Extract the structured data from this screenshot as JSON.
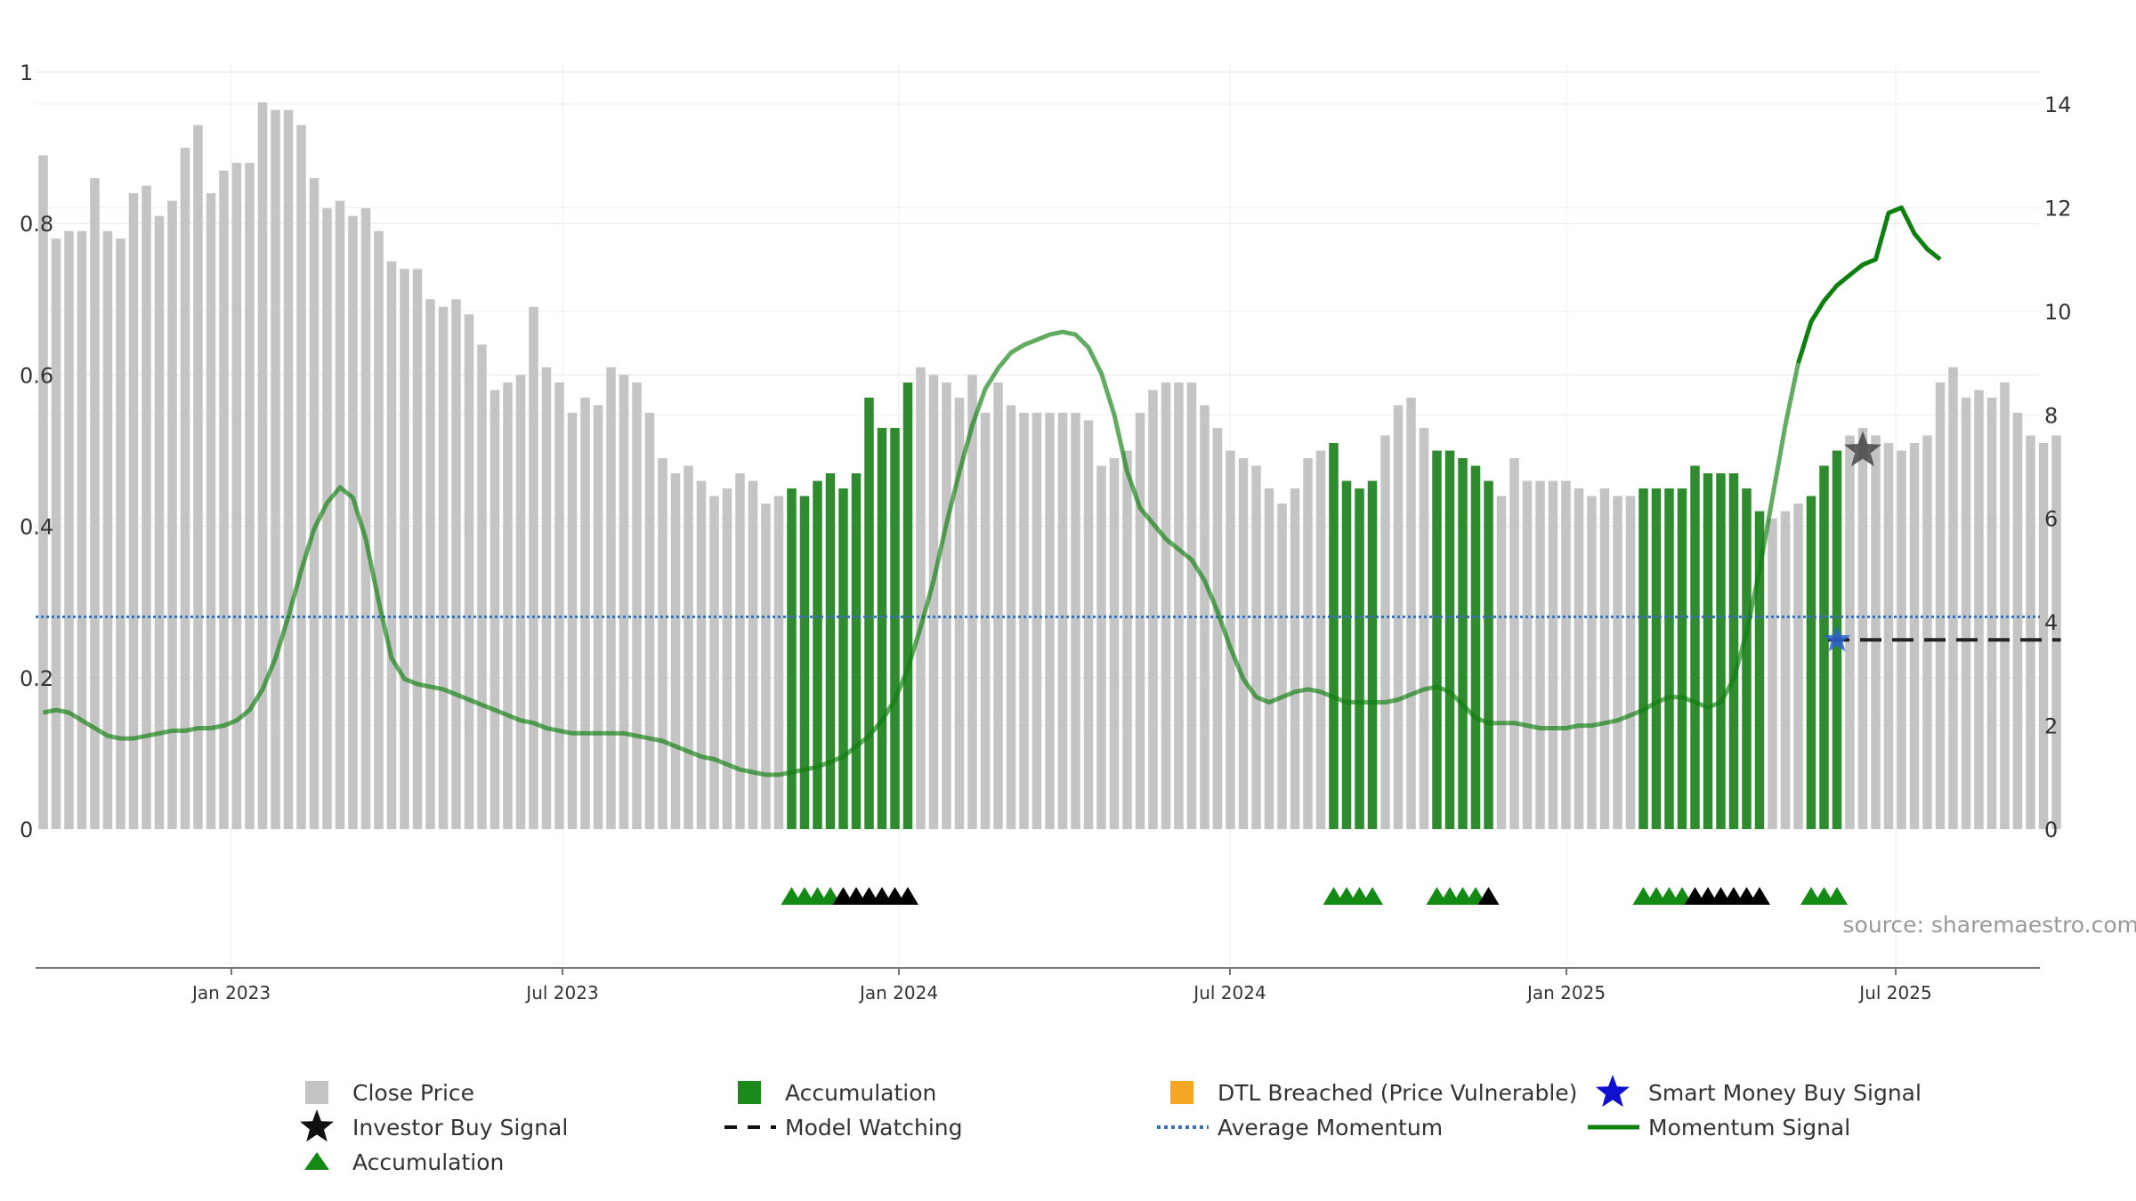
{
  "source_text": "source: sharemaestro.com",
  "legend": {
    "close_price": "Close Price",
    "accumulation_bar": "Accumulation",
    "dtl_breached": "DTL Breached (Price Vulnerable)",
    "smart_money": "Smart Money Buy Signal",
    "investor_buy": "Investor Buy Signal",
    "model_watching": "Model Watching",
    "average_momentum": "Average Momentum",
    "momentum_signal": "Momentum Signal",
    "accumulation_marker": "Accumulation"
  },
  "colors": {
    "close_price": "#c4c4c4",
    "accumulation": "#2e8b2e",
    "dtl": "#f5a623",
    "smart_money": "#1010d0",
    "investor_buy": "#111111",
    "average_momentum": "#3b6fb0",
    "momentum_signal": "#0e800e",
    "grid": "#e6e6e6",
    "source": "#999999"
  },
  "chart_data": {
    "type": "bar",
    "axes": {
      "left": {
        "ylim": [
          0,
          1
        ],
        "ticks": [
          "0",
          "0.2",
          "0.4",
          "0.6",
          "0.8",
          "1"
        ]
      },
      "right": {
        "ylim": [
          0,
          14
        ],
        "ticks": [
          "0",
          "2",
          "4",
          "6",
          "8",
          "10",
          "12",
          "14"
        ]
      },
      "x": {
        "ticks": [
          "Jan 2023",
          "Jul 2023",
          "Jan 2024",
          "Jul 2024",
          "Jan 2025",
          "Jul 2025"
        ]
      }
    },
    "grid": true,
    "legend_position": "bottom",
    "close_price": [
      0.89,
      0.78,
      0.79,
      0.79,
      0.86,
      0.79,
      0.78,
      0.84,
      0.85,
      0.81,
      0.83,
      0.9,
      0.93,
      0.84,
      0.87,
      0.88,
      0.88,
      0.96,
      0.95,
      0.95,
      0.93,
      0.86,
      0.82,
      0.83,
      0.81,
      0.82,
      0.79,
      0.75,
      0.74,
      0.74,
      0.7,
      0.69,
      0.7,
      0.68,
      0.64,
      0.58,
      0.59,
      0.6,
      0.69,
      0.61,
      0.59,
      0.55,
      0.57,
      0.56,
      0.61,
      0.6,
      0.59,
      0.55,
      0.49,
      0.47,
      0.48,
      0.46,
      0.44,
      0.45,
      0.47,
      0.46,
      0.43,
      0.44,
      0.45,
      0.44,
      0.46,
      0.47,
      0.45,
      0.47,
      0.57,
      0.53,
      0.53,
      0.59,
      0.61,
      0.6,
      0.59,
      0.57,
      0.6,
      0.55,
      0.59,
      0.56,
      0.55,
      0.55,
      0.55,
      0.55,
      0.55,
      0.54,
      0.48,
      0.49,
      0.5,
      0.55,
      0.58,
      0.59,
      0.59,
      0.59,
      0.56,
      0.53,
      0.5,
      0.49,
      0.48,
      0.45,
      0.43,
      0.45,
      0.49,
      0.5,
      0.51,
      0.46,
      0.45,
      0.46,
      0.52,
      0.56,
      0.57,
      0.53,
      0.5,
      0.5,
      0.49,
      0.48,
      0.46,
      0.44,
      0.49,
      0.46,
      0.46,
      0.46,
      0.46,
      0.45,
      0.44,
      0.45,
      0.44,
      0.44,
      0.45,
      0.45,
      0.45,
      0.45,
      0.48,
      0.47,
      0.47,
      0.47,
      0.45,
      0.42,
      0.41,
      0.42,
      0.43,
      0.44,
      0.48,
      0.5,
      0.52,
      0.53,
      0.52,
      0.51,
      0.5,
      0.51,
      0.52,
      0.59,
      0.61,
      0.57,
      0.58,
      0.57,
      0.59,
      0.55,
      0.52,
      0.51,
      0.52
    ],
    "accumulation_ranges": [
      [
        58,
        67
      ],
      [
        100,
        103
      ],
      [
        108,
        112
      ],
      [
        124,
        133
      ],
      [
        137,
        139
      ]
    ],
    "momentum_signal": [
      2.25,
      2.3,
      2.25,
      2.1,
      1.95,
      1.8,
      1.75,
      1.75,
      1.8,
      1.85,
      1.9,
      1.9,
      1.95,
      1.95,
      2.0,
      2.1,
      2.3,
      2.7,
      3.3,
      4.1,
      5.0,
      5.8,
      6.3,
      6.6,
      6.4,
      5.6,
      4.4,
      3.3,
      2.9,
      2.8,
      2.75,
      2.7,
      2.6,
      2.5,
      2.4,
      2.3,
      2.2,
      2.1,
      2.05,
      1.95,
      1.9,
      1.85,
      1.85,
      1.85,
      1.85,
      1.85,
      1.8,
      1.75,
      1.7,
      1.6,
      1.5,
      1.4,
      1.35,
      1.25,
      1.15,
      1.1,
      1.05,
      1.05,
      1.1,
      1.15,
      1.2,
      1.3,
      1.4,
      1.6,
      1.8,
      2.1,
      2.5,
      3.1,
      3.9,
      4.8,
      5.9,
      6.9,
      7.8,
      8.5,
      8.9,
      9.2,
      9.35,
      9.45,
      9.55,
      9.6,
      9.55,
      9.3,
      8.8,
      8.0,
      6.9,
      6.2,
      5.9,
      5.6,
      5.4,
      5.2,
      4.8,
      4.2,
      3.5,
      2.9,
      2.55,
      2.45,
      2.55,
      2.65,
      2.7,
      2.65,
      2.55,
      2.45,
      2.45,
      2.45,
      2.45,
      2.5,
      2.6,
      2.7,
      2.75,
      2.65,
      2.4,
      2.15,
      2.05,
      2.05,
      2.05,
      2.0,
      1.95,
      1.95,
      1.95,
      2.0,
      2.0,
      2.05,
      2.1,
      2.2,
      2.3,
      2.45,
      2.55,
      2.55,
      2.45,
      2.35,
      2.45,
      2.9,
      3.8,
      5.0,
      6.4,
      7.8,
      9.0,
      9.8,
      10.2,
      10.5,
      10.7,
      10.9,
      11.0,
      11.9,
      12.0,
      11.5,
      11.2,
      11.0
    ],
    "average_momentum": 4.1,
    "investor_buy_signals": [
      {
        "index": 141,
        "value": 0.5
      }
    ],
    "smart_money_signals": [
      {
        "index": 139,
        "value": 0.25
      }
    ],
    "model_watching": {
      "start_index": 139,
      "end_index": 156,
      "value": 0.25
    },
    "accumulation_markers": [
      58,
      59,
      60,
      61,
      100,
      101,
      102,
      103,
      108,
      109,
      110,
      111,
      124,
      125,
      126,
      127,
      137,
      138,
      139
    ],
    "investor_markers": [
      62,
      63,
      64,
      65,
      66,
      67,
      112,
      128,
      129,
      130,
      131,
      132,
      133
    ]
  }
}
